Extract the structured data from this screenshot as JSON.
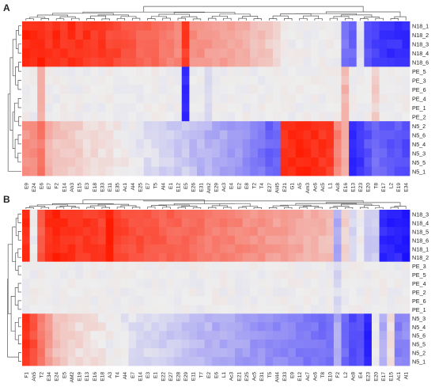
{
  "colors": {
    "high": "#ff1a00",
    "mid": "#eeeeee",
    "low": "#1a10ff",
    "dendrogram": "#555555",
    "text": "#222222"
  },
  "chart_data": [
    {
      "type": "heatmap",
      "panel_label": "A",
      "dendrograms": [
        "rows",
        "columns"
      ],
      "rows": [
        "N18_1",
        "N18_2",
        "N18_3",
        "N18_4",
        "N18_6",
        "PE_5",
        "PE_3",
        "PE_6",
        "PE_4",
        "PE_1",
        "PE_2",
        "N5_2",
        "N5_6",
        "N5_4",
        "N5_3",
        "N5_5",
        "N5_1"
      ],
      "columns": [
        "E9",
        "E24",
        "E6",
        "E7",
        "F2",
        "E14",
        "Ah3",
        "E15",
        "E3",
        "E18",
        "E33",
        "E11",
        "E35",
        "Ac1",
        "Al4",
        "E25",
        "E7",
        "T5",
        "Al4",
        "E1",
        "E12",
        "E5",
        "E26",
        "E31",
        "Am2",
        "E29",
        "Ac3",
        "E4",
        "E2",
        "E8",
        "T2",
        "T4",
        "E27",
        "Al45",
        "E21",
        "G1",
        "A5",
        "Am3",
        "Ac6",
        "Ac5",
        "L1",
        "Ac8",
        "E16",
        "E13",
        "E23",
        "E20",
        "T8",
        "E17",
        "L2",
        "E19",
        "E34"
      ],
      "value_range": [
        -1,
        1
      ],
      "row_groups": [
        {
          "rows": [
            "N18_1",
            "N18_2",
            "N18_3",
            "N18_4",
            "N18_6"
          ],
          "column_pattern": [
            0.95,
            0.92,
            0.95,
            0.86,
            0.93,
            0.88,
            0.9,
            0.86,
            0.88,
            0.83,
            0.84,
            0.8,
            0.78,
            0.72,
            0.7,
            0.66,
            0.63,
            0.6,
            0.56,
            0.52,
            0.5,
            0.85,
            0.45,
            0.42,
            0.4,
            0.38,
            0.36,
            0.33,
            0.3,
            0.27,
            0.24,
            0.2,
            0.16,
            0.12,
            0.02,
            0.0,
            0.0,
            0.0,
            0.0,
            0.0,
            0.0,
            0.0,
            -0.55,
            -0.62,
            -0.05,
            -0.7,
            -0.78,
            -0.82,
            -0.85,
            -0.85,
            -0.88
          ]
        },
        {
          "rows": [
            "PE_5",
            "PE_3",
            "PE_6",
            "PE_4",
            "PE_1",
            "PE_2"
          ],
          "column_pattern": [
            0.0,
            0.0,
            0.3,
            0.0,
            0.0,
            0.0,
            0.0,
            0.0,
            0.0,
            0.0,
            0.0,
            0.0,
            0.0,
            0.0,
            0.0,
            0.0,
            0.0,
            0.0,
            0.0,
            0.0,
            0.0,
            -0.9,
            0.0,
            0.0,
            -0.05,
            0.0,
            0.0,
            0.0,
            0.0,
            0.0,
            0.0,
            0.0,
            0.0,
            0.0,
            0.0,
            0.0,
            0.0,
            0.0,
            0.0,
            0.0,
            0.0,
            0.0,
            0.25,
            0.0,
            0.0,
            0.0,
            0.15,
            0.0,
            0.0,
            0.0,
            0.0
          ]
        },
        {
          "rows": [
            "N5_2",
            "N5_6",
            "N5_4",
            "N5_3",
            "N5_5",
            "N5_1"
          ],
          "column_pattern": [
            0.42,
            0.45,
            0.55,
            0.3,
            0.22,
            0.18,
            0.15,
            0.14,
            0.1,
            0.08,
            0.06,
            0.05,
            0.04,
            0.02,
            0.0,
            -0.05,
            -0.08,
            -0.1,
            -0.12,
            -0.15,
            -0.17,
            -0.15,
            -0.22,
            -0.25,
            -0.28,
            -0.3,
            -0.32,
            -0.35,
            -0.38,
            -0.42,
            -0.5,
            -0.55,
            -0.62,
            -0.6,
            0.9,
            0.92,
            0.95,
            0.93,
            0.9,
            0.88,
            0.85,
            0.5,
            0.3,
            -0.92,
            -0.85,
            -0.7,
            -0.6,
            -0.65,
            -0.7,
            -0.68,
            -0.72
          ]
        }
      ]
    },
    {
      "type": "heatmap",
      "panel_label": "B",
      "dendrograms": [
        "rows",
        "columns"
      ],
      "rows": [
        "N18_3",
        "N18_4",
        "N18_5",
        "N18_6",
        "N18_1",
        "N18_2",
        "PE_3",
        "PE_5",
        "PE_4",
        "PE_2",
        "PE_6",
        "PE_1",
        "N5_3",
        "N5_4",
        "N5_6",
        "N5_5",
        "N5_2",
        "N5_1"
      ],
      "columns": [
        "F1",
        "Ah5",
        "T2",
        "E34",
        "E24",
        "E5",
        "AM2",
        "E19",
        "E13",
        "E16",
        "E18",
        "A3",
        "T4",
        "Al4",
        "E7",
        "E14",
        "E3",
        "E1",
        "E22",
        "E27",
        "E28",
        "E29",
        "E11",
        "T7",
        "E2",
        "E6",
        "L1",
        "Ac3",
        "E21",
        "E25",
        "Ac5",
        "E31",
        "T5",
        "Al44",
        "E33",
        "E9",
        "E12",
        "Ac7",
        "Ac6",
        "T8",
        "E10",
        "F2",
        "L2",
        "Ac8",
        "E4",
        "E23",
        "E20",
        "E17",
        "E15",
        "Ac1",
        "Al1"
      ],
      "value_range": [
        -1,
        1
      ],
      "row_groups": [
        {
          "rows": [
            "N18_3",
            "N18_4",
            "N18_5",
            "N18_6",
            "N18_1",
            "N18_2"
          ],
          "column_pattern": [
            0.9,
            0.0,
            0.7,
            0.92,
            0.95,
            0.9,
            0.88,
            0.86,
            0.85,
            0.84,
            0.82,
            0.95,
            0.8,
            0.78,
            0.76,
            0.74,
            0.72,
            0.7,
            0.68,
            0.66,
            0.64,
            0.62,
            0.6,
            0.58,
            0.56,
            0.54,
            0.52,
            0.5,
            0.48,
            0.46,
            0.44,
            0.42,
            0.4,
            0.38,
            0.36,
            0.34,
            0.32,
            0.3,
            0.28,
            0.26,
            0.24,
            -0.3,
            0.15,
            -0.1,
            0.0,
            -0.2,
            -0.15,
            -0.88,
            -0.92,
            -0.9,
            -0.95
          ]
        },
        {
          "rows": [
            "PE_3",
            "PE_5",
            "PE_4",
            "PE_2",
            "PE_6",
            "PE_1"
          ],
          "column_pattern": [
            0.0,
            0.0,
            0.0,
            0.0,
            0.0,
            0.0,
            0.0,
            0.0,
            0.0,
            0.0,
            0.0,
            0.0,
            0.0,
            0.0,
            0.0,
            0.0,
            0.0,
            0.0,
            0.0,
            0.0,
            0.0,
            0.0,
            0.0,
            0.0,
            0.0,
            0.0,
            0.0,
            0.0,
            0.0,
            0.0,
            0.0,
            0.0,
            0.0,
            0.0,
            0.0,
            0.0,
            0.0,
            0.0,
            0.0,
            0.0,
            0.0,
            -0.1,
            0.0,
            0.0,
            0.0,
            0.0,
            0.0,
            0.0,
            0.0,
            0.0,
            0.0
          ]
        },
        {
          "rows": [
            "N5_3",
            "N5_4",
            "N5_6",
            "N5_5",
            "N5_2",
            "N5_1"
          ],
          "column_pattern": [
            0.88,
            0.75,
            0.55,
            0.38,
            0.25,
            0.18,
            0.12,
            0.1,
            0.08,
            0.06,
            0.04,
            0.02,
            0.0,
            -0.04,
            -0.06,
            -0.08,
            -0.1,
            -0.12,
            -0.14,
            -0.16,
            -0.18,
            -0.2,
            -0.22,
            -0.24,
            -0.26,
            -0.28,
            -0.3,
            -0.32,
            -0.34,
            -0.36,
            -0.38,
            -0.4,
            -0.42,
            -0.44,
            -0.46,
            -0.48,
            -0.5,
            -0.52,
            -0.54,
            -0.56,
            -0.58,
            -0.3,
            -0.6,
            -0.75,
            -0.72,
            -0.92,
            0.0,
            -0.3,
            0.1,
            -0.5,
            -0.45
          ]
        }
      ]
    }
  ]
}
